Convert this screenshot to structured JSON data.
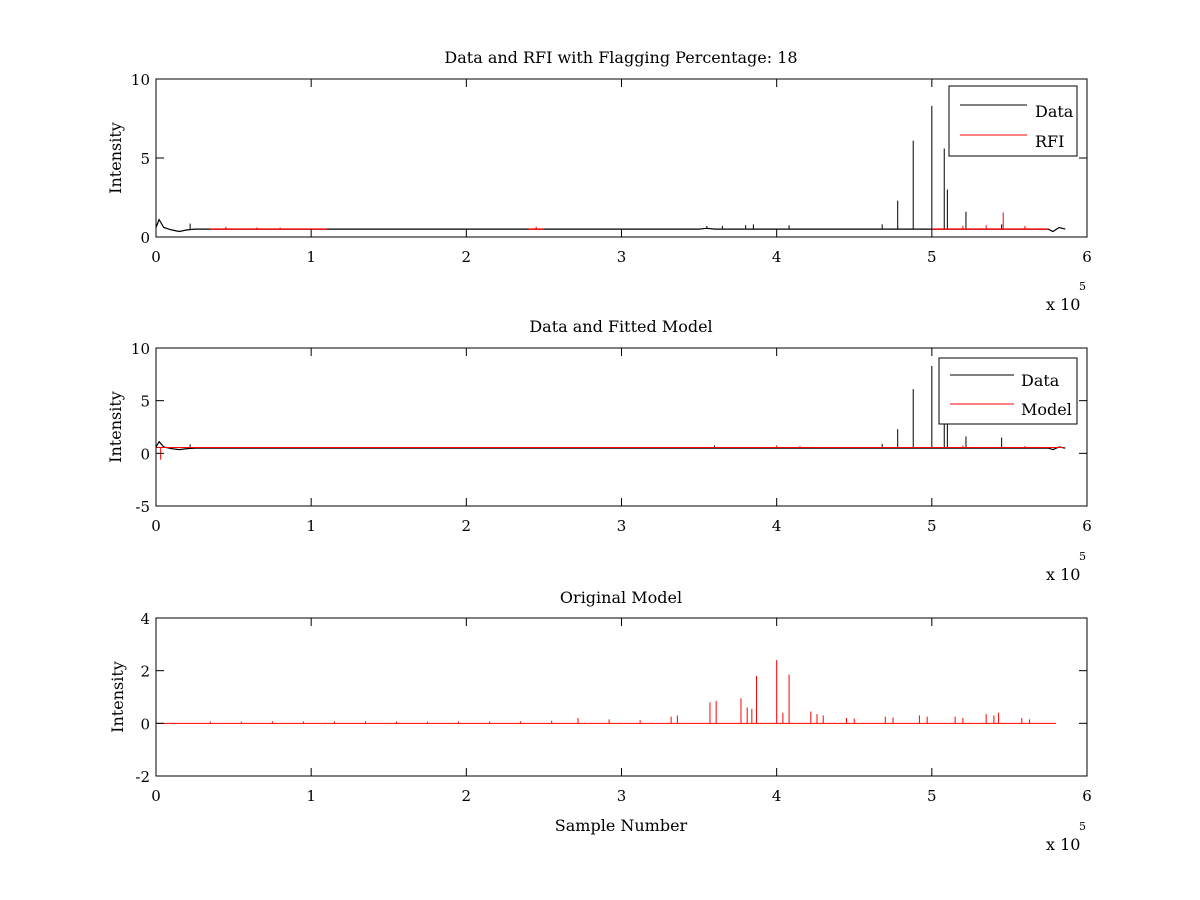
{
  "colors": {
    "data": "#000000",
    "rfi": "#ff0000",
    "model": "#ff0000",
    "axes": "#000000"
  },
  "chart_data": [
    {
      "type": "line",
      "title": "Data and RFI with Flagging Percentage: 18",
      "xlabel": "",
      "ylabel": "Intensity",
      "xlim": [
        0,
        600000
      ],
      "ylim": [
        0,
        10
      ],
      "x_ticks": [
        "0",
        "1",
        "2",
        "3",
        "4",
        "5",
        "6"
      ],
      "y_ticks": [
        "0",
        "5",
        "10"
      ],
      "x_multiplier": {
        "base": "x 10",
        "power": "5"
      },
      "legend": {
        "position": "top-right",
        "entries": [
          "Data",
          "RFI"
        ]
      },
      "grid": false,
      "series": [
        {
          "name": "Data",
          "color": "#000000",
          "baseline": [
            [
              0,
              0.6
            ],
            [
              2000,
              1.1
            ],
            [
              5000,
              0.6
            ],
            [
              10000,
              0.45
            ],
            [
              15000,
              0.35
            ],
            [
              20000,
              0.45
            ],
            [
              25000,
              0.5
            ],
            [
              350000,
              0.5
            ],
            [
              355000,
              0.55
            ],
            [
              360000,
              0.5
            ],
            [
              575000,
              0.5
            ],
            [
              578000,
              0.35
            ],
            [
              582000,
              0.6
            ],
            [
              586000,
              0.5
            ]
          ],
          "spikes": [
            [
              22000,
              0.85
            ],
            [
              355000,
              0.7
            ],
            [
              365000,
              0.7
            ],
            [
              380000,
              0.75
            ],
            [
              385000,
              0.8
            ],
            [
              408000,
              0.75
            ],
            [
              468000,
              0.8
            ],
            [
              478000,
              2.3
            ],
            [
              488000,
              6.1
            ],
            [
              500000,
              8.3
            ],
            [
              508000,
              5.6
            ],
            [
              510000,
              3.0
            ],
            [
              522000,
              1.6
            ],
            [
              545000,
              0.8
            ]
          ]
        },
        {
          "name": "RFI",
          "color": "#ff0000",
          "segments": [
            [
              35000,
              110000
            ],
            [
              240000,
              250000
            ],
            [
              500000,
              575000
            ]
          ],
          "level": 0.5,
          "spikes": [
            [
              45000,
              0.65
            ],
            [
              65000,
              0.6
            ],
            [
              80000,
              0.6
            ],
            [
              245000,
              0.65
            ],
            [
              520000,
              0.7
            ],
            [
              535000,
              0.75
            ],
            [
              546000,
              1.55
            ],
            [
              560000,
              0.7
            ]
          ]
        }
      ]
    },
    {
      "type": "line",
      "title": "Data and Fitted Model",
      "xlabel": "",
      "ylabel": "Intensity",
      "xlim": [
        0,
        600000
      ],
      "ylim": [
        -5,
        10
      ],
      "x_ticks": [
        "0",
        "1",
        "2",
        "3",
        "4",
        "5",
        "6"
      ],
      "y_ticks": [
        "-5",
        "0",
        "5",
        "10"
      ],
      "x_multiplier": {
        "base": "x 10",
        "power": "5"
      },
      "legend": {
        "position": "top-right",
        "entries": [
          "Data",
          "Model"
        ]
      },
      "grid": false,
      "series": [
        {
          "name": "Data",
          "color": "#000000",
          "baseline": [
            [
              0,
              0.6
            ],
            [
              2000,
              1.1
            ],
            [
              5000,
              0.6
            ],
            [
              10000,
              0.45
            ],
            [
              15000,
              0.35
            ],
            [
              20000,
              0.45
            ],
            [
              25000,
              0.5
            ],
            [
              575000,
              0.5
            ],
            [
              578000,
              0.35
            ],
            [
              582000,
              0.6
            ],
            [
              586000,
              0.5
            ]
          ],
          "spikes": [
            [
              22000,
              0.85
            ],
            [
              360000,
              0.75
            ],
            [
              468000,
              0.9
            ],
            [
              478000,
              2.3
            ],
            [
              488000,
              6.1
            ],
            [
              500000,
              8.3
            ],
            [
              508000,
              5.6
            ],
            [
              510000,
              3.0
            ],
            [
              522000,
              1.6
            ],
            [
              545000,
              1.5
            ]
          ]
        },
        {
          "name": "Model",
          "color": "#ff0000",
          "level": 0.55,
          "dip": [
            [
              3000,
              -0.6
            ]
          ],
          "spikes": [
            [
              400000,
              0.75
            ],
            [
              415000,
              0.7
            ],
            [
              520000,
              0.75
            ],
            [
              560000,
              0.7
            ]
          ]
        }
      ]
    },
    {
      "type": "line",
      "title": "Original Model",
      "xlabel": "Sample Number",
      "ylabel": "Intensity",
      "xlim": [
        0,
        600000
      ],
      "ylim": [
        -2,
        4
      ],
      "x_ticks": [
        "0",
        "1",
        "2",
        "3",
        "4",
        "5",
        "6"
      ],
      "y_ticks": [
        "-2",
        "0",
        "2",
        "4"
      ],
      "x_multiplier": {
        "base": "x 10",
        "power": "5"
      },
      "legend": null,
      "grid": false,
      "series": [
        {
          "color": "#ff0000",
          "level": 0,
          "x_end": 580000,
          "spikes": [
            [
              35000,
              0.07
            ],
            [
              55000,
              0.07
            ],
            [
              75000,
              0.08
            ],
            [
              95000,
              0.07
            ],
            [
              115000,
              0.07
            ],
            [
              135000,
              0.08
            ],
            [
              155000,
              0.07
            ],
            [
              175000,
              0.06
            ],
            [
              195000,
              0.07
            ],
            [
              215000,
              0.07
            ],
            [
              235000,
              0.08
            ],
            [
              255000,
              0.1
            ],
            [
              272000,
              0.2
            ],
            [
              292000,
              0.15
            ],
            [
              312000,
              0.12
            ],
            [
              332000,
              0.25
            ],
            [
              336000,
              0.3
            ],
            [
              357000,
              0.8
            ],
            [
              361000,
              0.85
            ],
            [
              377000,
              0.95
            ],
            [
              381000,
              0.6
            ],
            [
              384000,
              0.55
            ],
            [
              387000,
              1.8
            ],
            [
              400000,
              2.4
            ],
            [
              404000,
              0.4
            ],
            [
              408000,
              1.85
            ],
            [
              422000,
              0.45
            ],
            [
              426000,
              0.35
            ],
            [
              430000,
              0.3
            ],
            [
              445000,
              0.2
            ],
            [
              450000,
              0.18
            ],
            [
              470000,
              0.25
            ],
            [
              475000,
              0.22
            ],
            [
              492000,
              0.3
            ],
            [
              497000,
              0.25
            ],
            [
              515000,
              0.25
            ],
            [
              520000,
              0.2
            ],
            [
              535000,
              0.35
            ],
            [
              540000,
              0.3
            ],
            [
              543000,
              0.4
            ],
            [
              558000,
              0.2
            ],
            [
              563000,
              0.15
            ]
          ]
        }
      ]
    }
  ]
}
